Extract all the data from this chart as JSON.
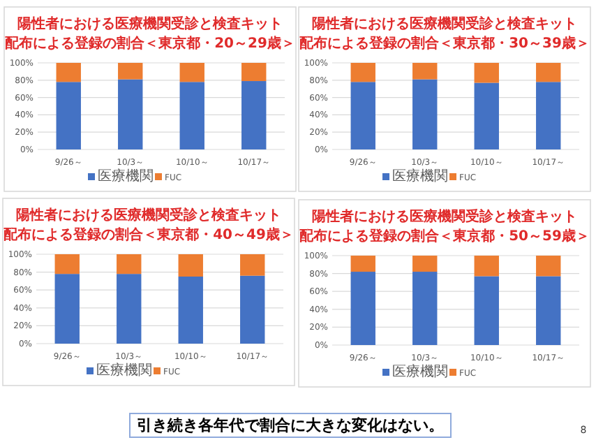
{
  "chart_data": [
    {
      "type": "bar",
      "stacked": true,
      "title": "陽性者における医療機関受診と検査キット",
      "subtitle": "配布による登録の割合＜東京都・20～29歳＞",
      "categories": [
        "9/26～",
        "10/3～",
        "10/10～",
        "10/17～"
      ],
      "series": [
        {
          "name": "医療機関",
          "color": "#4472c4",
          "values": [
            78,
            81,
            78,
            79
          ]
        },
        {
          "name": "FUC",
          "color": "#ed7d31",
          "values": [
            22,
            19,
            22,
            21
          ]
        }
      ],
      "ylim": [
        0,
        100
      ],
      "yticks": [
        {
          "value": 0,
          "label": "0%"
        },
        {
          "value": 20,
          "label": "20%"
        },
        {
          "value": 40,
          "label": "40%"
        },
        {
          "value": 60,
          "label": "60%"
        },
        {
          "value": 80,
          "label": "80%"
        },
        {
          "value": 100,
          "label": "100%"
        }
      ],
      "grid": "y",
      "legend": "bottom"
    },
    {
      "type": "bar",
      "stacked": true,
      "title": "陽性者における医療機関受診と検査キット",
      "subtitle": "配布による登録の割合＜東京都・30～39歳＞",
      "categories": [
        "9/26～",
        "10/3～",
        "10/10～",
        "10/17～"
      ],
      "series": [
        {
          "name": "医療機関",
          "color": "#4472c4",
          "values": [
            78,
            81,
            77,
            78
          ]
        },
        {
          "name": "FUC",
          "color": "#ed7d31",
          "values": [
            22,
            19,
            23,
            22
          ]
        }
      ],
      "ylim": [
        0,
        100
      ],
      "yticks": [
        {
          "value": 0,
          "label": "0%"
        },
        {
          "value": 20,
          "label": "20%"
        },
        {
          "value": 40,
          "label": "40%"
        },
        {
          "value": 60,
          "label": "60%"
        },
        {
          "value": 80,
          "label": "80%"
        },
        {
          "value": 100,
          "label": "100%"
        }
      ],
      "grid": "y",
      "legend": "bottom"
    },
    {
      "type": "bar",
      "stacked": true,
      "title": "陽性者における医療機関受診と検査キット",
      "subtitle": "配布による登録の割合＜東京都・40～49歳＞",
      "categories": [
        "9/26～",
        "10/3～",
        "10/10～",
        "10/17～"
      ],
      "series": [
        {
          "name": "医療機関",
          "color": "#4472c4",
          "values": [
            78,
            78,
            75,
            76
          ]
        },
        {
          "name": "FUC",
          "color": "#ed7d31",
          "values": [
            22,
            22,
            25,
            24
          ]
        }
      ],
      "ylim": [
        0,
        100
      ],
      "yticks": [
        {
          "value": 0,
          "label": "0%"
        },
        {
          "value": 20,
          "label": "20%"
        },
        {
          "value": 40,
          "label": "40%"
        },
        {
          "value": 60,
          "label": "60%"
        },
        {
          "value": 80,
          "label": "80%"
        },
        {
          "value": 100,
          "label": "100%"
        }
      ],
      "grid": "y",
      "legend": "bottom"
    },
    {
      "type": "bar",
      "stacked": true,
      "title": "陽性者における医療機関受診と検査キット",
      "subtitle": "配布による登録の割合＜東京都・50～59歳＞",
      "categories": [
        "9/26～",
        "10/3～",
        "10/10～",
        "10/17～"
      ],
      "series": [
        {
          "name": "医療機関",
          "color": "#4472c4",
          "values": [
            82,
            82,
            77,
            77
          ]
        },
        {
          "name": "FUC",
          "color": "#ed7d31",
          "values": [
            18,
            18,
            23,
            23
          ]
        }
      ],
      "ylim": [
        0,
        100
      ],
      "yticks": [
        {
          "value": 0,
          "label": "0%"
        },
        {
          "value": 20,
          "label": "20%"
        },
        {
          "value": 40,
          "label": "40%"
        },
        {
          "value": 60,
          "label": "60%"
        },
        {
          "value": 80,
          "label": "80%"
        },
        {
          "value": 100,
          "label": "100%"
        }
      ],
      "grid": "y",
      "legend": "bottom"
    },
    {
      "type": "other",
      "annotations": [
        "引き続き各年代で割合に大きな変化はない。",
        "8"
      ]
    }
  ]
}
